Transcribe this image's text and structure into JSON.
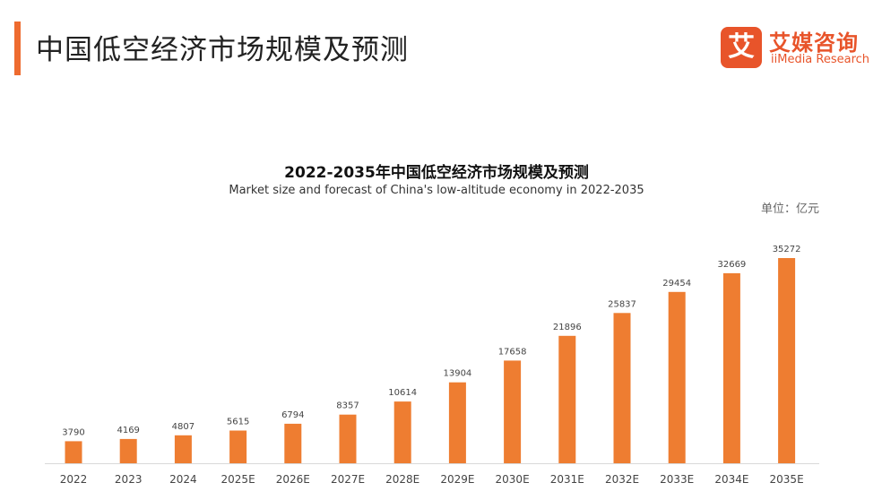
{
  "header": {
    "title": "中国低空经济市场规模及预测"
  },
  "logo": {
    "mark": "艾",
    "name_cn": "艾媒咨询",
    "name_en": "iiMedia Research"
  },
  "colors": {
    "accent": "#ee6b2f",
    "bar": "#ee7d31",
    "logo": "#e8542a"
  },
  "chart_data": {
    "type": "bar",
    "title": "2022-2035年中国低空经济市场规模及预测",
    "subtitle": "Market size and forecast of China's low-altitude economy in 2022-2035",
    "unit_label": "单位：亿元",
    "categories": [
      "2022",
      "2023",
      "2024",
      "2025E",
      "2026E",
      "2027E",
      "2028E",
      "2029E",
      "2030E",
      "2031E",
      "2032E",
      "2033E",
      "2034E",
      "2035E"
    ],
    "values": [
      3790,
      4169,
      4807,
      5615,
      6794,
      8357,
      10614,
      13904,
      17658,
      21896,
      25837,
      29454,
      32669,
      35272
    ],
    "xlabel": "",
    "ylabel": "",
    "ylim": [
      0,
      35272
    ],
    "grid": false,
    "legend": "none"
  }
}
